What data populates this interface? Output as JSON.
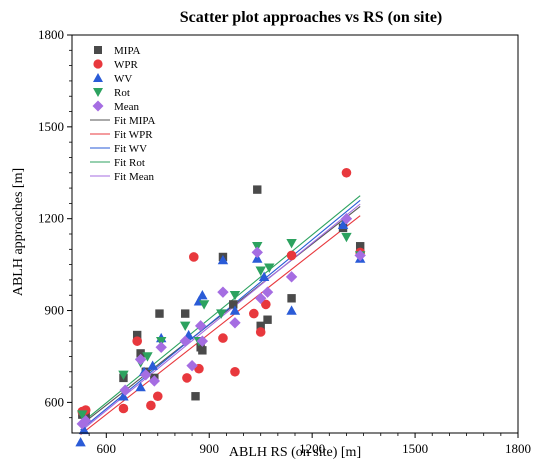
{
  "chart_data": {
    "type": "scatter",
    "title": "Scatter plot  approaches vs RS (on site)",
    "xlabel": "ABLH   RS (on site) [m]",
    "ylabel": "ABLH  approaches [m]",
    "xlim": [
      500,
      1800
    ],
    "ylim": [
      500,
      1800
    ],
    "x_ticks": [
      600,
      900,
      1200,
      1500,
      1800
    ],
    "y_ticks": [
      600,
      900,
      1200,
      1500,
      1800
    ],
    "legend_position": "top-left",
    "series": [
      {
        "name": "MIPA",
        "marker": "square",
        "color": "#4a4a4a",
        "points": [
          [
            530,
            560
          ],
          [
            540,
            555
          ],
          [
            650,
            680
          ],
          [
            690,
            820
          ],
          [
            700,
            760
          ],
          [
            715,
            700
          ],
          [
            740,
            680
          ],
          [
            755,
            890
          ],
          [
            830,
            890
          ],
          [
            860,
            620
          ],
          [
            875,
            780
          ],
          [
            880,
            770
          ],
          [
            940,
            1075
          ],
          [
            970,
            920
          ],
          [
            1040,
            1295
          ],
          [
            1050,
            850
          ],
          [
            1070,
            870
          ],
          [
            1140,
            940
          ],
          [
            1290,
            1170
          ],
          [
            1340,
            1110
          ]
        ]
      },
      {
        "name": "WPR",
        "marker": "circle",
        "color": "#e8383d",
        "points": [
          [
            530,
            570
          ],
          [
            540,
            575
          ],
          [
            650,
            580
          ],
          [
            690,
            800
          ],
          [
            730,
            590
          ],
          [
            750,
            620
          ],
          [
            835,
            680
          ],
          [
            855,
            1075
          ],
          [
            870,
            710
          ],
          [
            940,
            810
          ],
          [
            975,
            700
          ],
          [
            1030,
            890
          ],
          [
            1050,
            830
          ],
          [
            1065,
            920
          ],
          [
            1140,
            1080
          ],
          [
            1300,
            1350
          ],
          [
            1340,
            1090
          ]
        ]
      },
      {
        "name": "WV",
        "marker": "triangle-up",
        "color": "#2a5bd7",
        "points": [
          [
            525,
            470
          ],
          [
            535,
            510
          ],
          [
            650,
            620
          ],
          [
            700,
            650
          ],
          [
            710,
            700
          ],
          [
            735,
            720
          ],
          [
            760,
            810
          ],
          [
            840,
            820
          ],
          [
            870,
            930
          ],
          [
            880,
            950
          ],
          [
            940,
            1065
          ],
          [
            975,
            900
          ],
          [
            1040,
            1070
          ],
          [
            1060,
            1010
          ],
          [
            1140,
            900
          ],
          [
            1290,
            1180
          ],
          [
            1340,
            1070
          ]
        ]
      },
      {
        "name": "Rot",
        "marker": "triangle-down",
        "color": "#2ca25f",
        "points": [
          [
            530,
            560
          ],
          [
            650,
            690
          ],
          [
            700,
            730
          ],
          [
            720,
            750
          ],
          [
            760,
            800
          ],
          [
            830,
            850
          ],
          [
            870,
            800
          ],
          [
            885,
            920
          ],
          [
            935,
            890
          ],
          [
            975,
            950
          ],
          [
            1040,
            1110
          ],
          [
            1050,
            1030
          ],
          [
            1075,
            1040
          ],
          [
            1140,
            1120
          ],
          [
            1300,
            1140
          ],
          [
            1340,
            1080
          ]
        ]
      },
      {
        "name": "Mean",
        "marker": "diamond",
        "color": "#a56de2",
        "points": [
          [
            530,
            530
          ],
          [
            540,
            540
          ],
          [
            655,
            640
          ],
          [
            700,
            740
          ],
          [
            715,
            690
          ],
          [
            740,
            670
          ],
          [
            760,
            780
          ],
          [
            830,
            800
          ],
          [
            850,
            720
          ],
          [
            875,
            850
          ],
          [
            880,
            800
          ],
          [
            940,
            960
          ],
          [
            975,
            860
          ],
          [
            1040,
            1090
          ],
          [
            1050,
            940
          ],
          [
            1070,
            960
          ],
          [
            1140,
            1010
          ],
          [
            1300,
            1200
          ],
          [
            1340,
            1080
          ]
        ]
      }
    ],
    "fits": [
      {
        "name": "Fit MIPA",
        "color": "#555555",
        "line": [
          [
            525,
            525
          ],
          [
            1340,
            1240
          ]
        ]
      },
      {
        "name": "Fit WPR",
        "color": "#e8383d",
        "line": [
          [
            525,
            495
          ],
          [
            1340,
            1210
          ]
        ]
      },
      {
        "name": "Fit WV",
        "color": "#2a5bd7",
        "line": [
          [
            525,
            510
          ],
          [
            1340,
            1260
          ]
        ]
      },
      {
        "name": "Fit Rot",
        "color": "#2ca25f",
        "line": [
          [
            525,
            530
          ],
          [
            1340,
            1275
          ]
        ]
      },
      {
        "name": "Fit Mean",
        "color": "#a56de2",
        "line": [
          [
            525,
            505
          ],
          [
            1340,
            1248
          ]
        ]
      }
    ]
  }
}
